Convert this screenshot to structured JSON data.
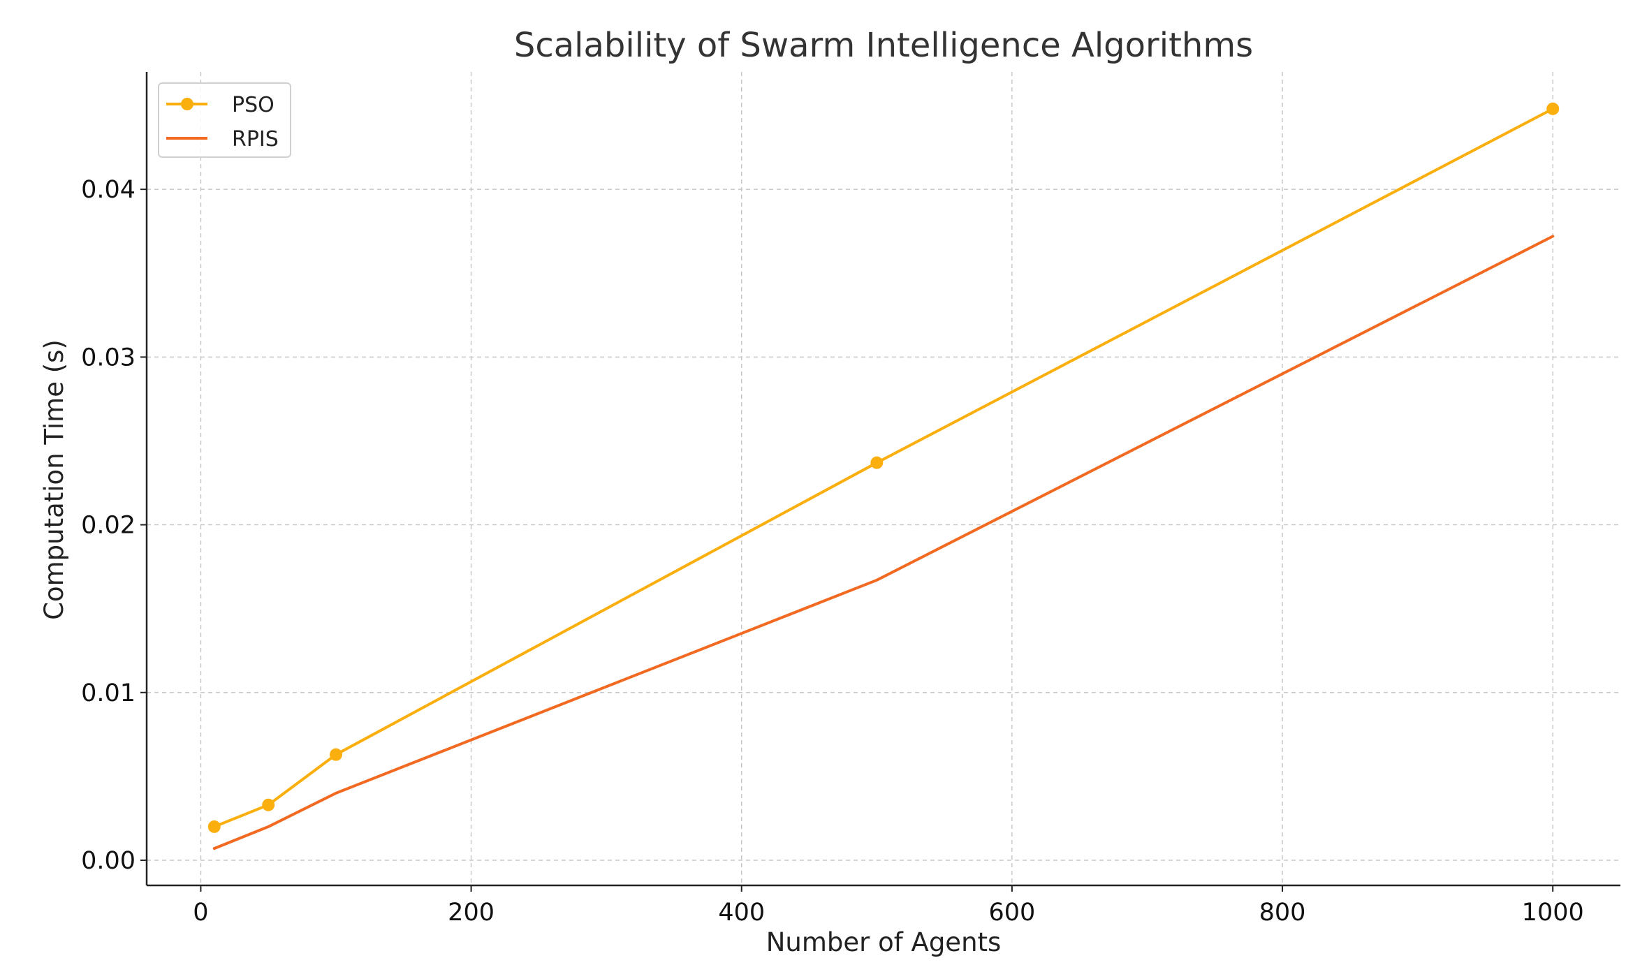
{
  "chart_data": {
    "type": "line",
    "title": "Scalability of Swarm Intelligence Algorithms",
    "xlabel": "Number of Agents",
    "ylabel": "Computation Time (s)",
    "xlim": [
      -40,
      1050
    ],
    "ylim": [
      -0.0015,
      0.047
    ],
    "x_ticks": [
      0,
      200,
      400,
      600,
      800,
      1000
    ],
    "x_tick_labels": [
      "0",
      "200",
      "400",
      "600",
      "800",
      "1000"
    ],
    "y_ticks": [
      0.0,
      0.01,
      0.02,
      0.03,
      0.04
    ],
    "y_tick_labels": [
      "0.00",
      "0.01",
      "0.02",
      "0.03",
      "0.04"
    ],
    "grid": true,
    "legend_position": "top-left",
    "series": [
      {
        "name": "PSO",
        "color": "#fbaf0f",
        "marker": "circle",
        "x": [
          10,
          50,
          100,
          500,
          1000
        ],
        "y": [
          0.002,
          0.0033,
          0.0063,
          0.0237,
          0.0448
        ]
      },
      {
        "name": "RPIS",
        "color": "#f26a21",
        "marker": "none",
        "x": [
          10,
          50,
          100,
          500,
          1000
        ],
        "y": [
          0.0007,
          0.002,
          0.004,
          0.0167,
          0.0372
        ]
      }
    ]
  }
}
